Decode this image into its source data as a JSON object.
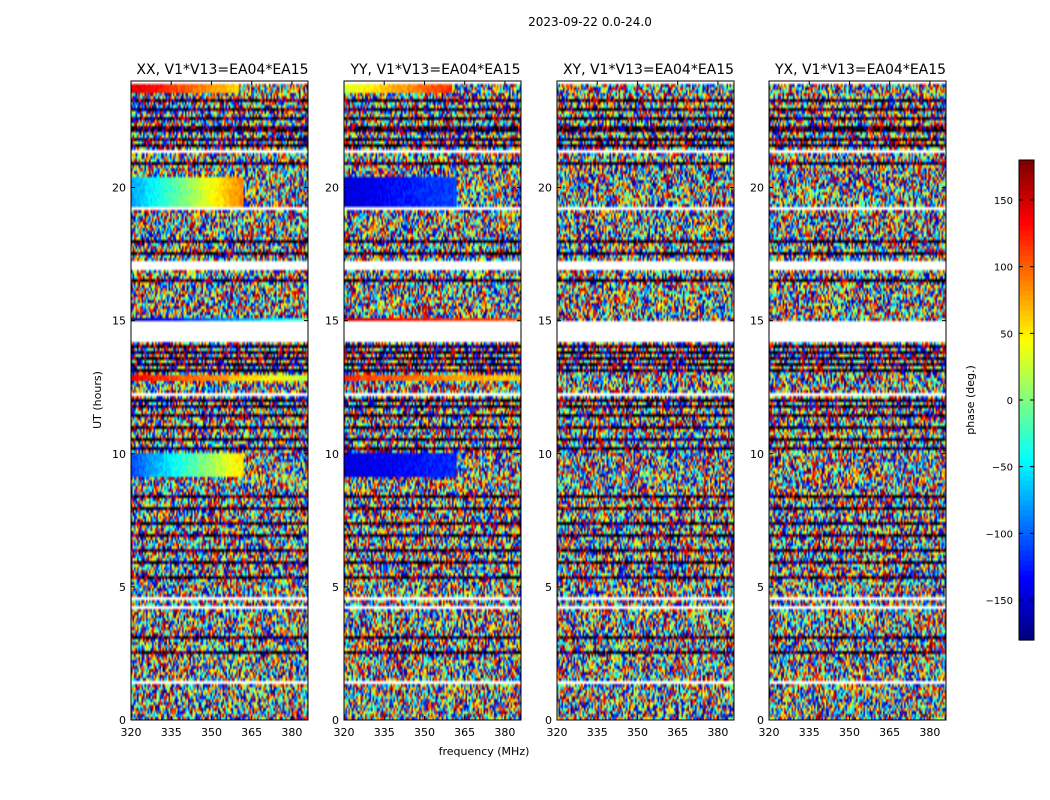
{
  "figure": {
    "title": "2023-09-22 0.0-24.0"
  },
  "chart_data": [
    {
      "type": "heatmap",
      "title": "XX, V1*V13=EA04*EA15",
      "xlabel": "frequency (MHz)",
      "ylabel": "UT (hours)",
      "xlim": [
        320,
        386
      ],
      "ylim": [
        0,
        24
      ],
      "xticks": [
        320,
        335,
        350,
        365,
        380
      ],
      "yticks": [
        0,
        5,
        10,
        15,
        20
      ],
      "coherent_bands": [
        {
          "t0": 9.1,
          "t1": 10.0,
          "f0": 320,
          "f1": 362,
          "phase_start": -110,
          "phase_end": 60
        },
        {
          "t0": 12.7,
          "t1": 13.0,
          "f0": 320,
          "f1": 386,
          "phase_start": 140,
          "phase_end": 20
        },
        {
          "t0": 15.0,
          "t1": 15.15,
          "f0": 320,
          "f1": 386,
          "phase_start": -160,
          "phase_end": -20
        },
        {
          "t0": 19.3,
          "t1": 20.4,
          "f0": 320,
          "f1": 362,
          "phase_start": -80,
          "phase_end": 90
        },
        {
          "t0": 23.6,
          "t1": 23.85,
          "f0": 320,
          "f1": 360,
          "phase_start": 150,
          "phase_end": 60
        }
      ]
    },
    {
      "type": "heatmap",
      "title": "YY, V1*V13=EA04*EA15",
      "xlabel": "frequency (MHz)",
      "ylabel": "",
      "xlim": [
        320,
        386
      ],
      "ylim": [
        0,
        24
      ],
      "xticks": [
        320,
        335,
        350,
        365,
        380
      ],
      "yticks": [
        0,
        5,
        10,
        15,
        20
      ],
      "coherent_bands": [
        {
          "t0": 9.1,
          "t1": 10.0,
          "f0": 320,
          "f1": 362,
          "phase_start": -150,
          "phase_end": -120
        },
        {
          "t0": 12.7,
          "t1": 13.0,
          "f0": 320,
          "f1": 386,
          "phase_start": 120,
          "phase_end": 60
        },
        {
          "t0": 15.0,
          "t1": 15.15,
          "f0": 320,
          "f1": 386,
          "phase_start": 150,
          "phase_end": 100
        },
        {
          "t0": 19.3,
          "t1": 20.4,
          "f0": 320,
          "f1": 362,
          "phase_start": -150,
          "phase_end": -110
        },
        {
          "t0": 23.6,
          "t1": 23.85,
          "f0": 320,
          "f1": 360,
          "phase_start": 30,
          "phase_end": 120
        }
      ]
    },
    {
      "type": "heatmap",
      "title": "XY, V1*V13=EA04*EA15",
      "xlabel": "",
      "ylabel": "",
      "xlim": [
        320,
        386
      ],
      "ylim": [
        0,
        24
      ],
      "xticks": [
        320,
        335,
        350,
        365,
        380
      ],
      "yticks": [
        0,
        5,
        10,
        15,
        20
      ],
      "coherent_bands": []
    },
    {
      "type": "heatmap",
      "title": "YX, V1*V13=EA04*EA15",
      "xlabel": "",
      "ylabel": "",
      "xlim": [
        320,
        386
      ],
      "ylim": [
        0,
        24
      ],
      "xticks": [
        320,
        335,
        350,
        365,
        380
      ],
      "yticks": [
        0,
        5,
        10,
        15,
        20
      ],
      "coherent_bands": []
    }
  ],
  "colorbar": {
    "label": "phase (deg.)",
    "vmin": -180,
    "vmax": 180,
    "ticks": [
      -150,
      -100,
      -50,
      0,
      50,
      100,
      150
    ],
    "tick_labels": [
      "−150",
      "−100",
      "−50",
      "0",
      "50",
      "100",
      "150"
    ],
    "colormap": "jet"
  },
  "flagged_gaps_hours": [
    [
      0.45,
      0.5
    ],
    [
      1.4,
      1.5
    ],
    [
      2.2,
      2.25
    ],
    [
      4.2,
      4.3
    ],
    [
      4.55,
      4.6
    ],
    [
      8.75,
      8.8
    ],
    [
      12.2,
      12.25
    ],
    [
      14.2,
      14.95
    ],
    [
      16.2,
      16.25
    ],
    [
      16.85,
      17.25
    ],
    [
      19.2,
      19.25
    ],
    [
      21.35,
      21.4
    ],
    [
      23.9,
      24.0
    ]
  ],
  "dark_rows_hours": [
    2.55,
    3.05,
    5.3,
    5.9,
    6.4,
    6.9,
    7.4,
    7.95,
    8.35,
    10.15,
    10.55,
    10.95,
    11.4,
    11.75,
    12.05,
    13.1,
    13.35,
    13.55,
    13.8,
    14.05,
    16.5,
    17.55,
    18.0,
    20.95,
    21.6,
    21.85,
    22.2,
    22.55,
    22.95,
    23.3
  ]
}
